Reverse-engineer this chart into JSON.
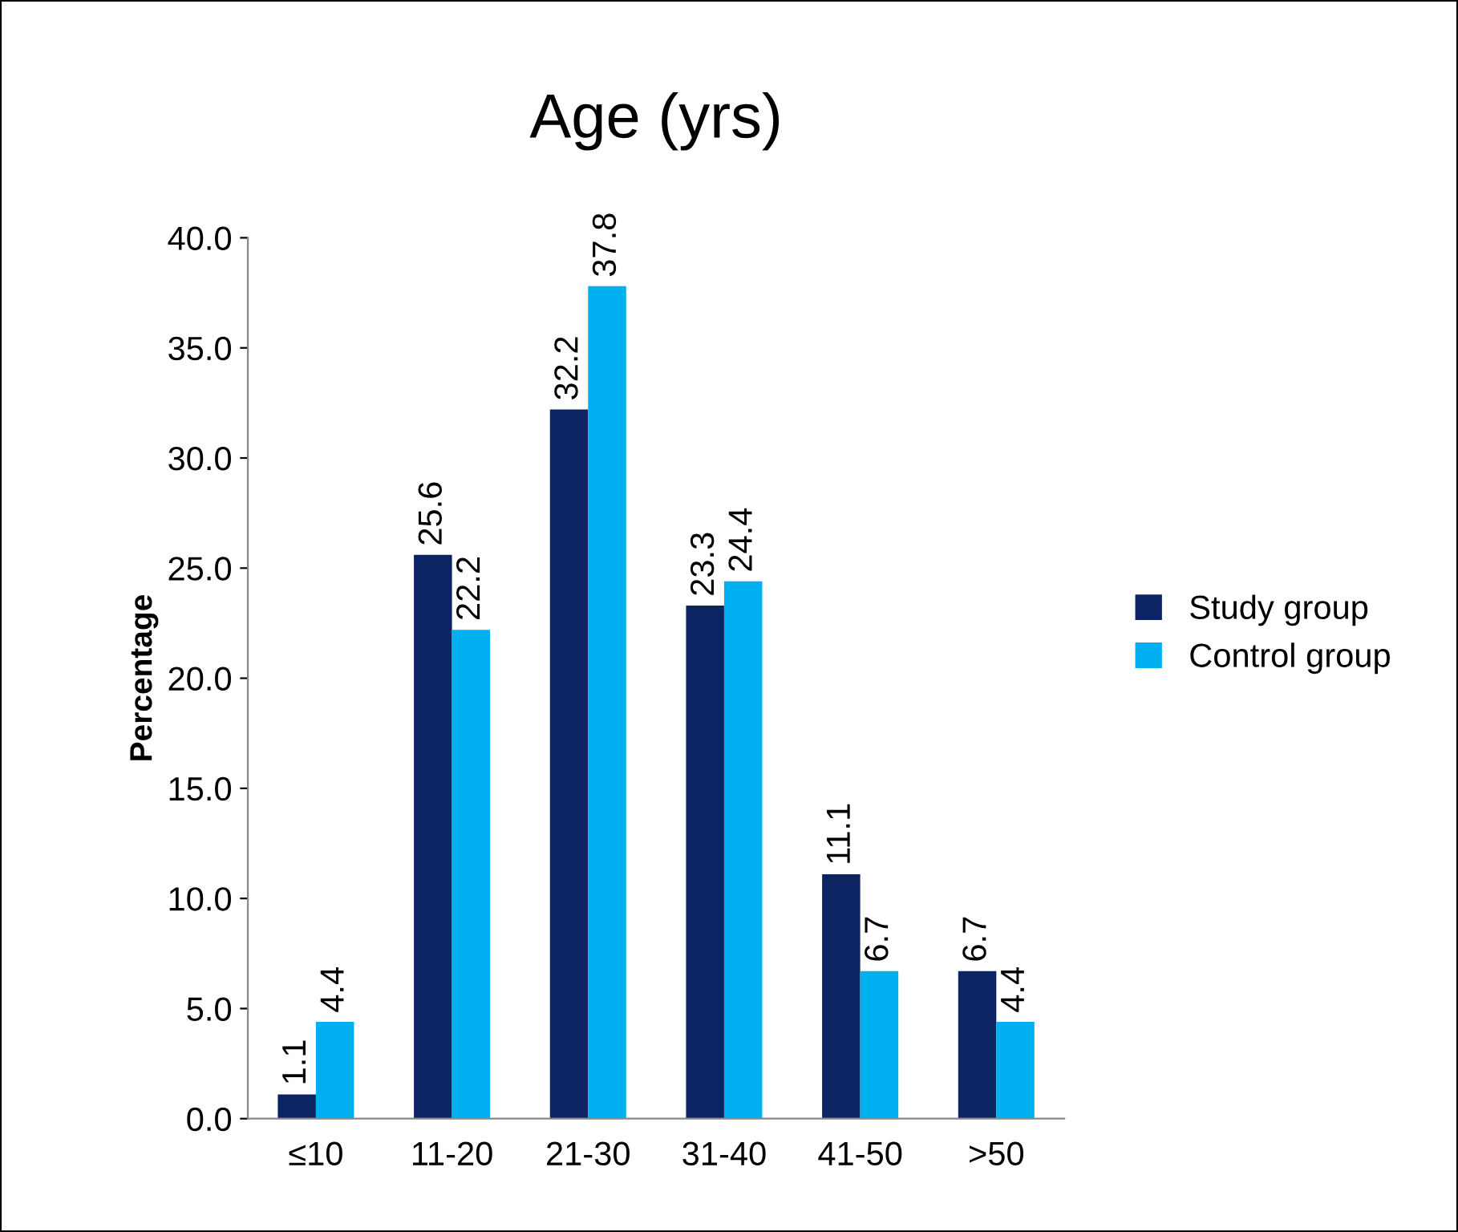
{
  "chart_data": {
    "type": "bar",
    "title": "Age (yrs)",
    "ylabel": "Percentage",
    "categories": [
      "≤10",
      "11-20",
      "21-30",
      "31-40",
      "41-50",
      ">50"
    ],
    "series": [
      {
        "name": "Study group",
        "color": "#0d2462",
        "values": [
          1.1,
          25.6,
          32.2,
          23.3,
          11.1,
          6.7
        ]
      },
      {
        "name": "Control group",
        "color": "#00b0f0",
        "values": [
          4.4,
          22.2,
          37.8,
          24.4,
          6.7,
          4.4
        ]
      }
    ],
    "ylim": [
      0,
      40
    ],
    "yticks": [
      {
        "value": 0,
        "label": "0.0"
      },
      {
        "value": 5,
        "label": "5.0"
      },
      {
        "value": 10,
        "label": "10.0"
      },
      {
        "value": 15,
        "label": "15.0"
      },
      {
        "value": 20,
        "label": "20.0"
      },
      {
        "value": 25,
        "label": "25.0"
      },
      {
        "value": 30,
        "label": "30.0"
      },
      {
        "value": 35,
        "label": "35.0"
      },
      {
        "value": 40,
        "label": "40.0"
      }
    ],
    "data_labels": true,
    "legend": "right",
    "grid": false
  }
}
